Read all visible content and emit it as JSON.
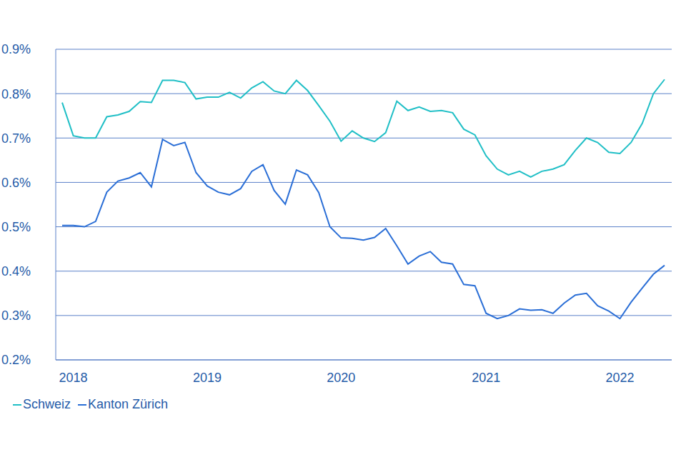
{
  "chart_data": {
    "type": "line",
    "categories": [
      null,
      "2018",
      null,
      null,
      null,
      null,
      null,
      null,
      null,
      null,
      null,
      null,
      null,
      "2019",
      null,
      null,
      null,
      null,
      null,
      null,
      null,
      null,
      null,
      null,
      null,
      "2020",
      null,
      null,
      null,
      null,
      null,
      null,
      null,
      null,
      null,
      null,
      null,
      null,
      "2021",
      null,
      null,
      null,
      null,
      null,
      null,
      null,
      null,
      null,
      null,
      null,
      "2022",
      null,
      null,
      null,
      null
    ],
    "series": [
      {
        "name": "Schweiz",
        "color": "#20bfc6",
        "values": [
          0.78,
          0.705,
          0.7,
          0.7,
          0.748,
          0.752,
          0.76,
          0.782,
          0.78,
          0.83,
          0.83,
          0.825,
          0.788,
          0.792,
          0.792,
          0.803,
          0.79,
          0.813,
          0.827,
          0.806,
          0.8,
          0.83,
          0.807,
          0.773,
          0.738,
          0.693,
          0.716,
          0.7,
          0.692,
          0.712,
          0.783,
          0.762,
          0.77,
          0.76,
          0.762,
          0.757,
          0.72,
          0.707,
          0.66,
          0.63,
          0.617,
          0.625,
          0.612,
          0.625,
          0.63,
          0.64,
          0.672,
          0.7,
          0.69,
          0.668,
          0.665,
          0.69,
          0.733,
          0.8,
          0.832
        ]
      },
      {
        "name": "Kanton Zürich",
        "color": "#2a6ed6",
        "values": [
          0.503,
          0.503,
          0.5,
          0.512,
          0.578,
          0.603,
          0.61,
          0.622,
          0.59,
          0.697,
          0.683,
          0.69,
          0.622,
          0.592,
          0.578,
          0.572,
          0.586,
          0.625,
          0.64,
          0.582,
          0.551,
          0.628,
          0.617,
          0.577,
          0.5,
          0.475,
          0.474,
          0.47,
          0.476,
          0.496,
          0.457,
          0.416,
          0.434,
          0.444,
          0.42,
          0.416,
          0.37,
          0.367,
          0.305,
          0.293,
          0.3,
          0.315,
          0.312,
          0.313,
          0.305,
          0.328,
          0.346,
          0.35,
          0.322,
          0.31,
          0.293,
          0.33,
          0.362,
          0.393,
          0.413
        ]
      }
    ],
    "ylim": [
      0.2,
      0.9
    ],
    "yticks": [
      {
        "value": 0.2,
        "label": "0.2%"
      },
      {
        "value": 0.3,
        "label": "0.3%"
      },
      {
        "value": 0.4,
        "label": "0.4%"
      },
      {
        "value": 0.5,
        "label": "0.5%"
      },
      {
        "value": 0.6,
        "label": "0.6%"
      },
      {
        "value": 0.7,
        "label": "0.7%"
      },
      {
        "value": 0.8,
        "label": "0.8%"
      },
      {
        "value": 0.9,
        "label": "0.9%"
      }
    ],
    "grid": true,
    "legend": "lower left"
  }
}
